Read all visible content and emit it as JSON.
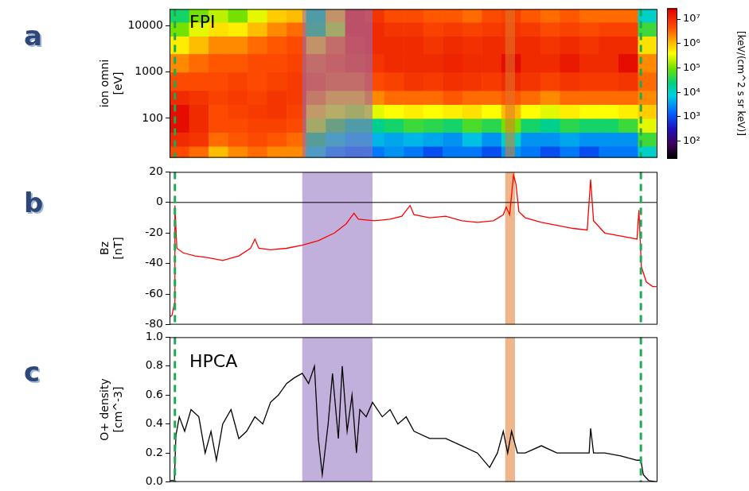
{
  "chart_data": [
    {
      "type": "heatmap",
      "panel": "a",
      "annotation": "FPI",
      "ylabel": [
        "ion omni",
        "[eV]"
      ],
      "xlim": [
        0,
        100
      ],
      "ylim": [
        14,
        23000
      ],
      "log": "y",
      "yticks": [
        100,
        1000,
        10000
      ],
      "tick_labels": "y",
      "x_edges": [
        0,
        4,
        8,
        12,
        16,
        20,
        24,
        28,
        32,
        36,
        40,
        44,
        48,
        52,
        56,
        60,
        64,
        68,
        72,
        76,
        80,
        84,
        88,
        92,
        96,
        100
      ],
      "y_edges": [
        14,
        25,
        50,
        100,
        200,
        400,
        1000,
        2500,
        6000,
        12000,
        23000
      ],
      "cells": [
        [
          5000000.0,
          10000000.0,
          20000000.0,
          20000000.0,
          10000000.0,
          5000000.0,
          2000000.0,
          500000.0,
          100000.0,
          30000.0
        ],
        [
          3000000.0,
          8000000.0,
          10000000.0,
          10000000.0,
          8000000.0,
          5000000.0,
          3000000.0,
          1000000.0,
          300000.0,
          100000.0
        ],
        [
          1000000.0,
          3000000.0,
          5000000.0,
          5000000.0,
          6000000.0,
          5000000.0,
          4000000.0,
          2000000.0,
          600000.0,
          200000.0
        ],
        [
          2000000.0,
          4000000.0,
          5000000.0,
          6000000.0,
          7000000.0,
          6000000.0,
          4000000.0,
          2000000.0,
          500000.0,
          100000.0
        ],
        [
          3000000.0,
          5000000.0,
          6000000.0,
          7000000.0,
          6000000.0,
          5000000.0,
          5000000.0,
          3000000.0,
          1000000.0,
          300000.0
        ],
        [
          2000000.0,
          4000000.0,
          6000000.0,
          8000000.0,
          8000000.0,
          6000000.0,
          5000000.0,
          4000000.0,
          2000000.0,
          800000.0
        ],
        [
          2000000.0,
          3000000.0,
          5000000.0,
          6000000.0,
          7000000.0,
          7000000.0,
          6000000.0,
          5000000.0,
          3000000.0,
          1000000.0
        ],
        [
          10000.0,
          30000.0,
          200000.0,
          800000.0,
          2000000.0,
          4000000.0,
          3000000.0,
          1000000.0,
          30000.0,
          20000.0
        ],
        [
          3000.0,
          10000.0,
          50000.0,
          300000.0,
          1000000.0,
          3000000.0,
          4000000.0,
          3000000.0,
          200000.0,
          1000000.0
        ],
        [
          2000.0,
          5000.0,
          20000.0,
          200000.0,
          1000000.0,
          3000000.0,
          6000000.0,
          8000000.0,
          10000000.0,
          10000000.0
        ],
        [
          2000.0,
          5000.0,
          20000.0,
          300000.0,
          2000000.0,
          5000000.0,
          8000000.0,
          10000000.0,
          10000000.0,
          8000000.0
        ],
        [
          3000.0,
          4000.0,
          30000.0,
          400000.0,
          3000000.0,
          6000000.0,
          10000000.0,
          10000000.0,
          8000000.0,
          5000000.0
        ],
        [
          2000.0,
          5000.0,
          50000.0,
          500000.0,
          3000000.0,
          8000000.0,
          10000000.0,
          10000000.0,
          8000000.0,
          5000000.0
        ],
        [
          1000.0,
          4000.0,
          40000.0,
          400000.0,
          3000000.0,
          7000000.0,
          10000000.0,
          8000000.0,
          6000000.0,
          4000000.0
        ],
        [
          2000.0,
          3000.0,
          30000.0,
          500000.0,
          4000000.0,
          9000000.0,
          12000000.0,
          10000000.0,
          7000000.0,
          4000000.0
        ],
        [
          2000.0,
          6000.0,
          60000.0,
          600000.0,
          3000000.0,
          8000000.0,
          10000000.0,
          9000000.0,
          6000000.0,
          3000000.0
        ],
        [
          1000.0,
          3000.0,
          40000.0,
          400000.0,
          3000000.0,
          7000000.0,
          10000000.0,
          10000000.0,
          7000000.0,
          5000000.0
        ],
        [
          3000.0,
          10000.0,
          100000.0,
          1000000.0,
          4000000.0,
          10000000.0,
          20000000.0,
          10000000.0,
          8000000.0,
          6000000.0
        ],
        [
          2000.0,
          3000.0,
          30000.0,
          400000.0,
          3000000.0,
          8000000.0,
          10000000.0,
          10000000.0,
          7000000.0,
          4000000.0
        ],
        [
          1000.0,
          3000.0,
          20000.0,
          300000.0,
          2000000.0,
          6000000.0,
          10000000.0,
          8000000.0,
          5000000.0,
          3000000.0
        ],
        [
          2000.0,
          4000.0,
          40000.0,
          500000.0,
          3000000.0,
          8000000.0,
          15000000.0,
          10000000.0,
          6000000.0,
          4000000.0
        ],
        [
          1000.0,
          3000.0,
          30000.0,
          400000.0,
          3000000.0,
          7000000.0,
          10000000.0,
          8000000.0,
          5000000.0,
          3000000.0
        ],
        [
          2000.0,
          3000.0,
          30000.0,
          400000.0,
          3000000.0,
          7000000.0,
          10000000.0,
          10000000.0,
          6000000.0,
          3000000.0
        ],
        [
          2000.0,
          3000.0,
          50000.0,
          500000.0,
          3000000.0,
          8000000.0,
          20000000.0,
          10000000.0,
          6000000.0,
          3000000.0
        ],
        [
          10000.0,
          50000.0,
          300000.0,
          800000.0,
          2000000.0,
          3000000.0,
          2000000.0,
          600000.0,
          50000.0,
          10000.0
        ]
      ],
      "colorbar": {
        "label": "[keV/(cm^2 s sr keV)]",
        "range": [
          20,
          27000000
        ],
        "log": true,
        "ticks": [
          {
            "value": 100,
            "label": "10²"
          },
          {
            "value": 1000,
            "label": "10³"
          },
          {
            "value": 10000,
            "label": "10⁴"
          },
          {
            "value": 100000,
            "label": "10⁵"
          },
          {
            "value": 1000000,
            "label": "10⁶"
          },
          {
            "value": 10000000,
            "label": "10⁷"
          }
        ]
      },
      "shaded_regions": [
        {
          "x": [
            27.2,
            41.6
          ],
          "color": "#9070c0"
        },
        {
          "x": [
            68.8,
            70.8
          ],
          "color": "#e07a2a"
        }
      ],
      "vlines": {
        "x": [
          1.1,
          96.6
        ],
        "color": "#1fa855",
        "line_style": "dashed"
      }
    },
    {
      "type": "line",
      "panel": "b",
      "ylabel": [
        "Bz",
        "[nT]"
      ],
      "xlim": [
        0,
        100
      ],
      "ylim": [
        -80,
        20
      ],
      "yticks": [
        -80,
        -60,
        -40,
        -20,
        0,
        20
      ],
      "tick_labels": "y",
      "color": "#ff0000",
      "x": [
        0,
        0.5,
        1.0,
        1.1,
        1.5,
        2.8,
        5.2,
        7.7,
        10.9,
        14.2,
        16.6,
        17.5,
        18.3,
        20.7,
        24.0,
        27.2,
        30.5,
        33.8,
        36.2,
        37.8,
        38.7,
        42.0,
        45.2,
        47.6,
        49.3,
        50.1,
        53.3,
        56.6,
        59.9,
        63.1,
        66.4,
        68.4,
        69.0,
        69.7,
        70.5,
        71.0,
        71.6,
        72.9,
        76.2,
        79.4,
        82.7,
        85.6,
        86.3,
        86.9,
        89.2,
        92.5,
        95.8,
        96.2,
        96.7,
        97.7,
        99.0,
        99.8
      ],
      "values": [
        -75,
        -74,
        -66,
        -2,
        -30,
        -33,
        -35,
        -36,
        -38,
        -35,
        -30,
        -24,
        -30,
        -31,
        -30,
        -28,
        -25,
        -20,
        -14,
        -7,
        -11,
        -12,
        -11,
        -9,
        -2,
        -8,
        -10,
        -9,
        -12,
        -13,
        -12,
        -8,
        -3,
        -8,
        18,
        12,
        -6,
        -10,
        -13,
        -15,
        -17,
        -18,
        15,
        -12,
        -20,
        -22,
        -24,
        -5,
        -42,
        -52,
        -55,
        -55
      ],
      "reference_lines": [
        0
      ],
      "shaded_regions": [
        {
          "x": [
            27.2,
            41.6
          ],
          "color": "#9070c0"
        },
        {
          "x": [
            68.8,
            70.8
          ],
          "color": "#e07a2a"
        }
      ],
      "vlines": {
        "x": [
          1.1,
          96.6
        ],
        "color": "#1fa855",
        "line_style": "dashed"
      }
    },
    {
      "type": "line",
      "panel": "c",
      "annotation": "HPCA",
      "ylabel": [
        "O+ density",
        "[cm^-3]"
      ],
      "xlim": [
        0,
        100
      ],
      "ylim": [
        0,
        1
      ],
      "yticks": [
        {
          "value": 0,
          "label": "0.0"
        },
        {
          "value": 0.2,
          "label": "0.2"
        },
        {
          "value": 0.4,
          "label": "0.4"
        },
        {
          "value": 0.6,
          "label": "0.6"
        },
        {
          "value": 0.8,
          "label": "0.8"
        },
        {
          "value": 1,
          "label": "1.0"
        }
      ],
      "tick_labels": "y",
      "color": "#000000",
      "x": [
        0,
        1.0,
        1.3,
        2.0,
        3.1,
        4.4,
        6.0,
        7.3,
        8.5,
        9.6,
        10.9,
        12.6,
        14.2,
        15.8,
        17.5,
        19.1,
        20.7,
        22.3,
        24.0,
        25.6,
        27.2,
        28.5,
        29.7,
        30.5,
        31.3,
        32.5,
        33.4,
        34.6,
        35.4,
        36.4,
        37.4,
        38.3,
        39.0,
        40.3,
        41.6,
        43.6,
        45.2,
        46.8,
        48.5,
        50.1,
        53.3,
        56.6,
        59.9,
        63.1,
        65.6,
        67.2,
        68.4,
        69.3,
        70.1,
        71.3,
        72.9,
        76.2,
        79.4,
        82.7,
        86.0,
        86.3,
        86.9,
        89.2,
        92.5,
        95.8,
        96.6,
        97.1,
        98.2,
        99.8
      ],
      "values": [
        0.01,
        0.01,
        0.32,
        0.45,
        0.35,
        0.5,
        0.45,
        0.2,
        0.35,
        0.15,
        0.4,
        0.5,
        0.3,
        0.35,
        0.45,
        0.4,
        0.55,
        0.6,
        0.68,
        0.72,
        0.75,
        0.68,
        0.8,
        0.3,
        0.05,
        0.4,
        0.75,
        0.3,
        0.8,
        0.35,
        0.6,
        0.2,
        0.5,
        0.45,
        0.55,
        0.45,
        0.5,
        0.4,
        0.45,
        0.35,
        0.3,
        0.3,
        0.25,
        0.2,
        0.1,
        0.2,
        0.35,
        0.2,
        0.35,
        0.2,
        0.2,
        0.25,
        0.2,
        0.2,
        0.2,
        0.37,
        0.2,
        0.2,
        0.18,
        0.15,
        0.15,
        0.05,
        0.01,
        0.0
      ],
      "shaded_regions": [
        {
          "x": [
            27.2,
            41.6
          ],
          "color": "#9070c0"
        },
        {
          "x": [
            68.8,
            70.8
          ],
          "color": "#e07a2a"
        }
      ],
      "vlines": {
        "x": [
          1.1,
          96.6
        ],
        "color": "#1fa855",
        "line_style": "dashed"
      }
    }
  ]
}
